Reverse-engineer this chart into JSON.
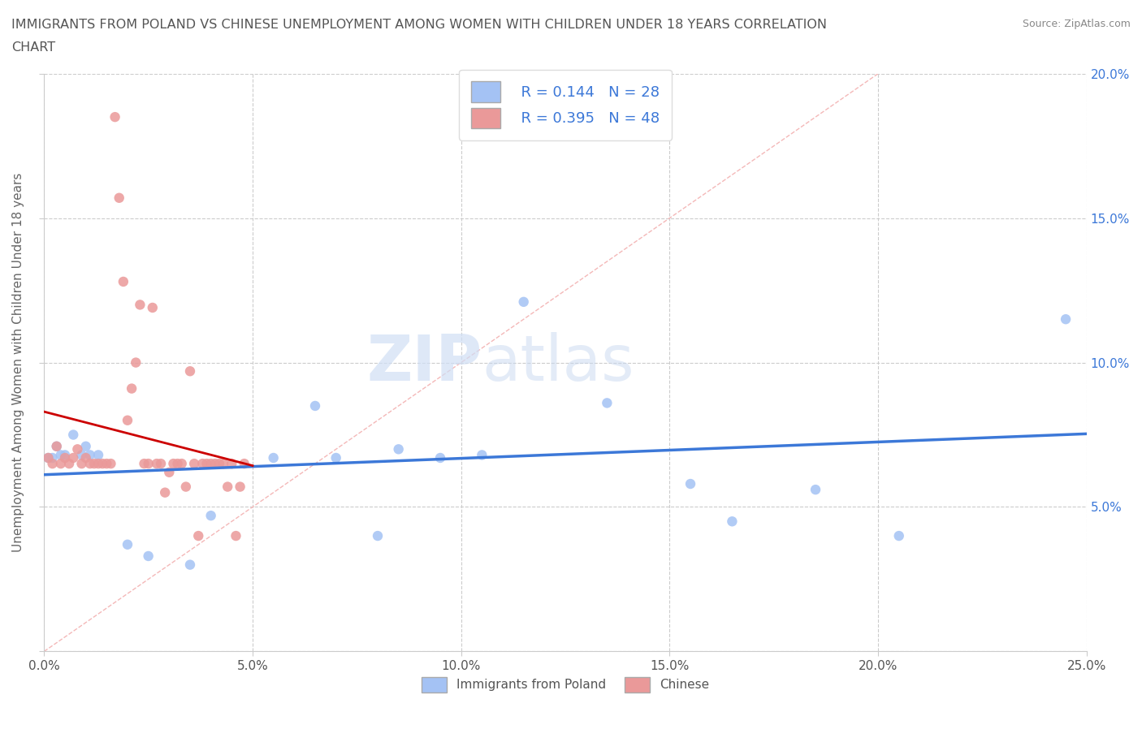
{
  "title_line1": "IMMIGRANTS FROM POLAND VS CHINESE UNEMPLOYMENT AMONG WOMEN WITH CHILDREN UNDER 18 YEARS CORRELATION",
  "title_line2": "CHART",
  "source": "Source: ZipAtlas.com",
  "ylabel": "Unemployment Among Women with Children Under 18 years",
  "xlim": [
    0.0,
    0.25
  ],
  "ylim": [
    0.0,
    0.2
  ],
  "xticks": [
    0.0,
    0.05,
    0.1,
    0.15,
    0.2,
    0.25
  ],
  "yticks": [
    0.0,
    0.05,
    0.1,
    0.15,
    0.2
  ],
  "xticklabels": [
    "0.0%",
    "5.0%",
    "10.0%",
    "15.0%",
    "20.0%",
    "25.0%"
  ],
  "ytick_right_labels": [
    "",
    "5.0%",
    "10.0%",
    "15.0%",
    "20.0%"
  ],
  "poland_color": "#a4c2f4",
  "chinese_color": "#ea9999",
  "poland_line_color": "#3c78d8",
  "chinese_line_color": "#cc0000",
  "diagonal_color": "#f4b8b8",
  "R_poland": 0.144,
  "N_poland": 28,
  "R_chinese": 0.395,
  "N_chinese": 48,
  "background_color": "#ffffff",
  "grid_color": "#cccccc",
  "watermark_zip": "ZIP",
  "watermark_atlas": "atlas",
  "legend_poland": "Immigrants from Poland",
  "legend_chinese": "Chinese",
  "poland_x": [
    0.001,
    0.002,
    0.003,
    0.004,
    0.005,
    0.007,
    0.009,
    0.01,
    0.011,
    0.013,
    0.02,
    0.025,
    0.035,
    0.04,
    0.055,
    0.065,
    0.07,
    0.08,
    0.085,
    0.095,
    0.105,
    0.115,
    0.135,
    0.155,
    0.165,
    0.185,
    0.205,
    0.245
  ],
  "poland_y": [
    0.067,
    0.067,
    0.071,
    0.068,
    0.068,
    0.075,
    0.068,
    0.071,
    0.068,
    0.068,
    0.037,
    0.033,
    0.03,
    0.047,
    0.067,
    0.085,
    0.067,
    0.04,
    0.07,
    0.067,
    0.068,
    0.121,
    0.086,
    0.058,
    0.045,
    0.056,
    0.04,
    0.115
  ],
  "chinese_x": [
    0.001,
    0.002,
    0.003,
    0.004,
    0.005,
    0.006,
    0.007,
    0.008,
    0.009,
    0.01,
    0.011,
    0.012,
    0.013,
    0.014,
    0.015,
    0.016,
    0.017,
    0.018,
    0.019,
    0.02,
    0.021,
    0.022,
    0.023,
    0.024,
    0.025,
    0.026,
    0.027,
    0.028,
    0.029,
    0.03,
    0.031,
    0.032,
    0.033,
    0.034,
    0.035,
    0.036,
    0.037,
    0.038,
    0.039,
    0.04,
    0.041,
    0.042,
    0.043,
    0.044,
    0.045,
    0.046,
    0.047,
    0.048
  ],
  "chinese_y": [
    0.067,
    0.065,
    0.071,
    0.065,
    0.067,
    0.065,
    0.067,
    0.07,
    0.065,
    0.067,
    0.065,
    0.065,
    0.065,
    0.065,
    0.065,
    0.065,
    0.185,
    0.157,
    0.128,
    0.08,
    0.091,
    0.1,
    0.12,
    0.065,
    0.065,
    0.119,
    0.065,
    0.065,
    0.055,
    0.062,
    0.065,
    0.065,
    0.065,
    0.057,
    0.097,
    0.065,
    0.04,
    0.065,
    0.065,
    0.065,
    0.065,
    0.065,
    0.065,
    0.057,
    0.065,
    0.04,
    0.057,
    0.065
  ]
}
